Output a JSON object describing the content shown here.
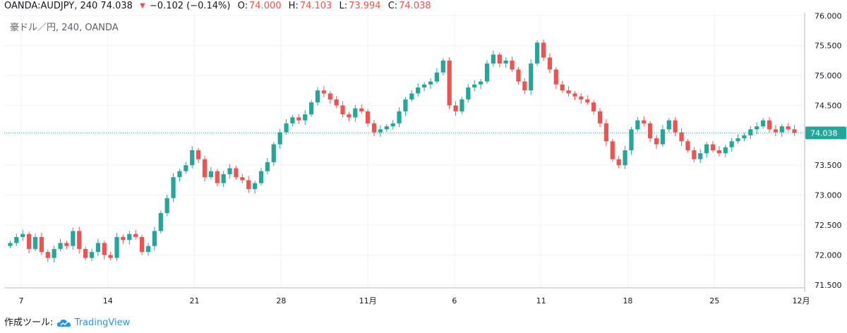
{
  "header": {
    "symbol": "OANDA:AUDJPY, 240",
    "last": "74.038",
    "change": "−0.102 (−0.14%)",
    "o_label": "O:",
    "o_value": "74.000",
    "h_label": "H:",
    "h_value": "74.103",
    "l_label": "L:",
    "l_value": "73.994",
    "c_label": "C:",
    "c_value": "74.038"
  },
  "subtitle": "豪ドル／円, 240, OANDA",
  "price_badge": "74.038",
  "footer": {
    "prefix": "作成ツール:",
    "brand": "TradingView"
  },
  "colors": {
    "up": "#26a69a",
    "down": "#ef5350",
    "grid": "#f0f3fa",
    "badge": "#26a69a"
  },
  "chart_data": {
    "type": "candlestick",
    "title": "豪ドル／円, 240, OANDA",
    "y_ticks": [
      "76.000",
      "75.500",
      "75.000",
      "74.500",
      "74.000",
      "73.500",
      "73.000",
      "72.500",
      "72.000",
      "71.500"
    ],
    "ylim": [
      71.45,
      76.05
    ],
    "x_ticks": [
      "7",
      "14",
      "21",
      "28",
      "11月",
      "6",
      "11",
      "18",
      "25",
      "12月"
    ],
    "grid": true,
    "series": [
      {
        "values": [
          72.2,
          72.3,
          72.35,
          72.1,
          72.3,
          72.05,
          71.95,
          72.1,
          72.2,
          72.15,
          72.4,
          72.1,
          71.95,
          72.05,
          72.2,
          72.0,
          71.95,
          72.3,
          72.25,
          72.35,
          72.3,
          72.05,
          72.15,
          72.4,
          72.7,
          72.95,
          73.3,
          73.4,
          73.5,
          73.75,
          73.6,
          73.3,
          73.4,
          73.2,
          73.35,
          73.45,
          73.3,
          73.25,
          73.1,
          73.2,
          73.4,
          73.55,
          73.85,
          74.05,
          74.2,
          74.3,
          74.25,
          74.35,
          74.55,
          74.75,
          74.7,
          74.6,
          74.5,
          74.35,
          74.3,
          74.45,
          74.4,
          74.2,
          74.05,
          74.1,
          74.15,
          74.2,
          74.4,
          74.6,
          74.7,
          74.8,
          74.85,
          74.9,
          75.05,
          75.25,
          74.5,
          74.4,
          74.6,
          74.8,
          74.85,
          74.9,
          75.2,
          75.35,
          75.2,
          75.25,
          75.1,
          74.9,
          74.75,
          75.2,
          75.55,
          75.3,
          75.1,
          74.85,
          74.75,
          74.7,
          74.65,
          74.6,
          74.55,
          74.4,
          74.2,
          73.9,
          73.6,
          73.5,
          73.75,
          74.1,
          74.25,
          74.2,
          73.95,
          73.85,
          74.1,
          74.25,
          74.05,
          73.9,
          73.75,
          73.6,
          73.7,
          73.85,
          73.75,
          73.7,
          73.8,
          73.9,
          73.95,
          74.0,
          74.1,
          74.15,
          74.25,
          74.1,
          74.05,
          74.15,
          74.1,
          74.04
        ]
      }
    ]
  }
}
